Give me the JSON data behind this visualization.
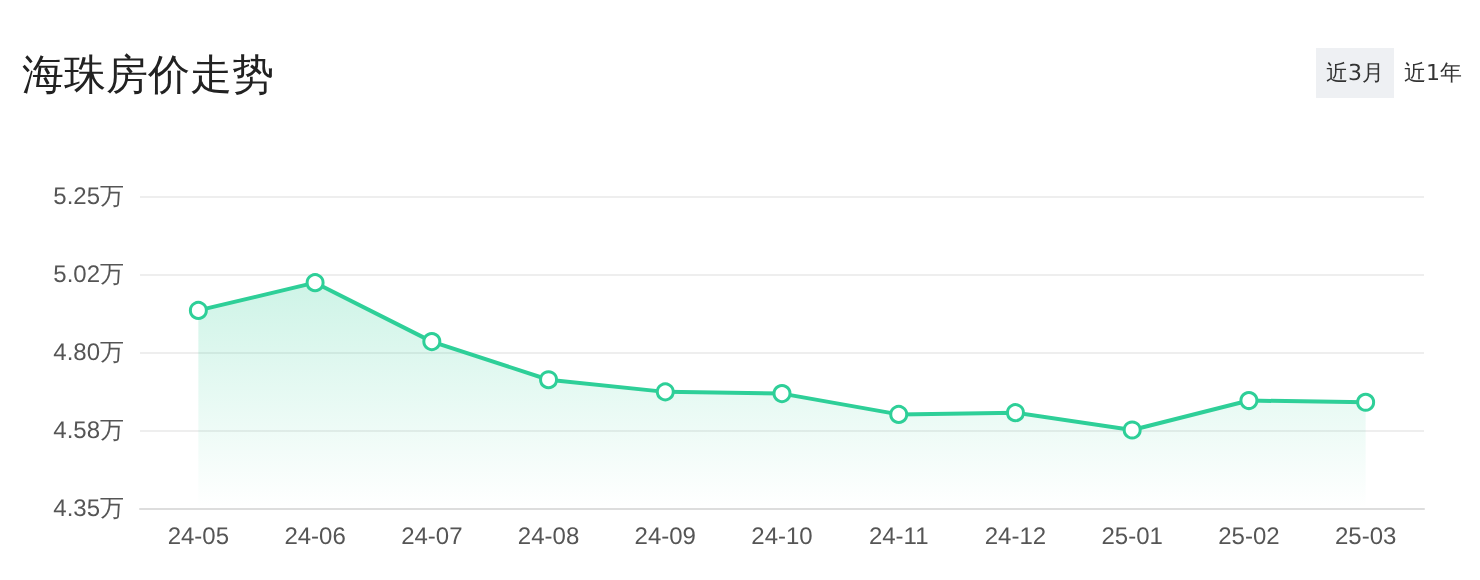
{
  "chart_data": {
    "type": "area",
    "title": "海珠房价走势",
    "annotations": [
      "近3月",
      "近1年"
    ],
    "categories": [
      "24-05",
      "24-06",
      "24-07",
      "24-08",
      "24-09",
      "24-10",
      "24-11",
      "24-12",
      "25-01",
      "25-02",
      "25-03"
    ],
    "series": [
      {
        "color": "#2ecf98",
        "values": [
          4.92,
          5.0,
          4.83,
          4.72,
          4.685,
          4.68,
          4.62,
          4.625,
          4.575,
          4.66,
          4.655
        ]
      }
    ],
    "ylim": [
      4.35,
      5.25
    ],
    "yticks": [
      {
        "value": 4.35,
        "label": "4.35万"
      },
      {
        "value": 4.575,
        "label": "4.58万"
      },
      {
        "value": 4.8,
        "label": "4.80万"
      },
      {
        "value": 5.025,
        "label": "5.02万"
      },
      {
        "value": 5.25,
        "label": "5.25万"
      }
    ],
    "grid": "y",
    "marker": "circle",
    "line_style": "solid"
  }
}
